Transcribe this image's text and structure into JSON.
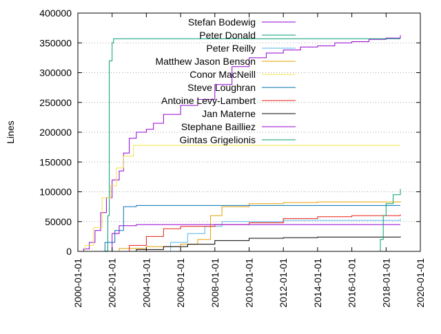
{
  "chart_data": {
    "type": "line",
    "title": "",
    "xlabel": "",
    "ylabel": "Lines",
    "xlim": [
      "2000-01-01",
      "2020-01-01"
    ],
    "ylim": [
      0,
      400000
    ],
    "x_ticks": [
      "2000-01-01",
      "2002-01-01",
      "2004-01-01",
      "2006-01-01",
      "2008-01-01",
      "2010-01-01",
      "2012-01-01",
      "2014-01-01",
      "2016-01-01",
      "2018-01-01",
      "2020-01-01"
    ],
    "y_ticks": [
      0,
      50000,
      100000,
      150000,
      200000,
      250000,
      300000,
      350000,
      400000
    ],
    "y_tick_labels": [
      "0",
      "50000",
      "100000",
      "150000",
      "200000",
      "250000",
      "300000",
      "350000",
      "400000"
    ],
    "grid": "horizontal dotted at 50000, 100000, 150000",
    "legend_position": "top-center",
    "series": [
      {
        "name": "Stefan Bodewig",
        "color": "#9400d3",
        "points": [
          [
            "2000-01-10",
            0
          ],
          [
            "2000-05-01",
            4000
          ],
          [
            "2000-09-01",
            15000
          ],
          [
            "2001-01-01",
            35000
          ],
          [
            "2001-05-01",
            65000
          ],
          [
            "2001-09-01",
            90000
          ],
          [
            "2002-01-01",
            120000
          ],
          [
            "2002-06-01",
            135000
          ],
          [
            "2002-09-01",
            165000
          ],
          [
            "2003-01-01",
            190000
          ],
          [
            "2003-06-01",
            200000
          ],
          [
            "2004-01-01",
            205000
          ],
          [
            "2004-06-01",
            215000
          ],
          [
            "2005-01-01",
            230000
          ],
          [
            "2006-01-01",
            245000
          ],
          [
            "2007-01-01",
            255000
          ],
          [
            "2008-01-01",
            280000
          ],
          [
            "2009-01-01",
            310000
          ],
          [
            "2010-01-01",
            325000
          ],
          [
            "2011-01-01",
            333000
          ],
          [
            "2012-01-01",
            338000
          ],
          [
            "2013-01-01",
            343000
          ],
          [
            "2014-01-01",
            345000
          ],
          [
            "2015-01-01",
            350000
          ],
          [
            "2016-01-01",
            352000
          ],
          [
            "2017-01-01",
            356000
          ],
          [
            "2018-01-01",
            358000
          ],
          [
            "2018-11-01",
            363000
          ]
        ]
      },
      {
        "name": "Peter Donald",
        "color": "#009e73",
        "points": [
          [
            "2000-06-01",
            0
          ],
          [
            "2001-08-01",
            500
          ],
          [
            "2001-10-01",
            60000
          ],
          [
            "2001-11-01",
            320000
          ],
          [
            "2002-01-01",
            350000
          ],
          [
            "2002-02-01",
            357000
          ],
          [
            "2018-11-01",
            357000
          ]
        ]
      },
      {
        "name": "Peter Reilly",
        "color": "#56b4e9",
        "points": [
          [
            "2004-09-01",
            0
          ],
          [
            "2005-06-01",
            15000
          ],
          [
            "2006-06-01",
            30000
          ],
          [
            "2007-06-01",
            42000
          ],
          [
            "2008-06-01",
            50000
          ],
          [
            "2012-01-01",
            52000
          ],
          [
            "2018-11-01",
            55000
          ]
        ]
      },
      {
        "name": "Matthew Jason Benson",
        "color": "#e69f00",
        "points": [
          [
            "2001-03-01",
            0
          ],
          [
            "2002-06-01",
            5000
          ],
          [
            "2004-01-01",
            8000
          ],
          [
            "2006-01-01",
            12000
          ],
          [
            "2007-01-01",
            20000
          ],
          [
            "2007-10-01",
            60000
          ],
          [
            "2008-06-01",
            75000
          ],
          [
            "2010-01-01",
            80000
          ],
          [
            "2012-01-01",
            82000
          ],
          [
            "2014-01-01",
            83000
          ],
          [
            "2018-11-01",
            84000
          ]
        ]
      },
      {
        "name": "Conor MacNeill",
        "color": "#f0e442",
        "points": [
          [
            "2000-01-10",
            0
          ],
          [
            "2000-06-01",
            10000
          ],
          [
            "2000-12-01",
            40000
          ],
          [
            "2001-06-01",
            90000
          ],
          [
            "2001-12-01",
            110000
          ],
          [
            "2002-04-01",
            140000
          ],
          [
            "2002-09-01",
            160000
          ],
          [
            "2003-04-01",
            178000
          ],
          [
            "2018-11-01",
            178000
          ]
        ]
      },
      {
        "name": "Steve Loughran",
        "color": "#0072b2",
        "points": [
          [
            "2001-01-01",
            0
          ],
          [
            "2001-08-01",
            15000
          ],
          [
            "2002-03-01",
            35000
          ],
          [
            "2002-09-01",
            75000
          ],
          [
            "2003-06-01",
            77000
          ],
          [
            "2018-11-01",
            77000
          ]
        ]
      },
      {
        "name": "Antoine Levy-Lambert",
        "color": "#e51e10",
        "points": [
          [
            "2002-06-01",
            0
          ],
          [
            "2003-01-01",
            10000
          ],
          [
            "2004-01-01",
            25000
          ],
          [
            "2005-01-01",
            38000
          ],
          [
            "2006-01-01",
            42000
          ],
          [
            "2008-01-01",
            45000
          ],
          [
            "2010-01-01",
            48000
          ],
          [
            "2012-01-01",
            55000
          ],
          [
            "2014-01-01",
            58000
          ],
          [
            "2016-01-01",
            60000
          ],
          [
            "2018-11-01",
            62000
          ]
        ]
      },
      {
        "name": "Jan Materne",
        "color": "#000000",
        "points": [
          [
            "2002-06-01",
            0
          ],
          [
            "2003-06-01",
            3000
          ],
          [
            "2005-01-01",
            8000
          ],
          [
            "2006-06-01",
            12000
          ],
          [
            "2008-01-01",
            18000
          ],
          [
            "2010-01-01",
            22000
          ],
          [
            "2012-01-01",
            23000
          ],
          [
            "2014-01-01",
            24000
          ],
          [
            "2018-11-01",
            25000
          ]
        ]
      },
      {
        "name": "Stephane Bailliez",
        "color": "#9400d3",
        "points": [
          [
            "2001-06-01",
            0
          ],
          [
            "2002-01-01",
            30000
          ],
          [
            "2002-06-01",
            43000
          ],
          [
            "2003-06-01",
            45000
          ],
          [
            "2018-11-01",
            45000
          ]
        ]
      },
      {
        "name": "Gintas Grigelionis",
        "color": "#009e73",
        "points": [
          [
            "2017-06-01",
            0
          ],
          [
            "2017-09-01",
            20000
          ],
          [
            "2017-11-01",
            60000
          ],
          [
            "2018-01-01",
            80000
          ],
          [
            "2018-06-01",
            95000
          ],
          [
            "2018-11-01",
            105000
          ]
        ]
      }
    ]
  }
}
